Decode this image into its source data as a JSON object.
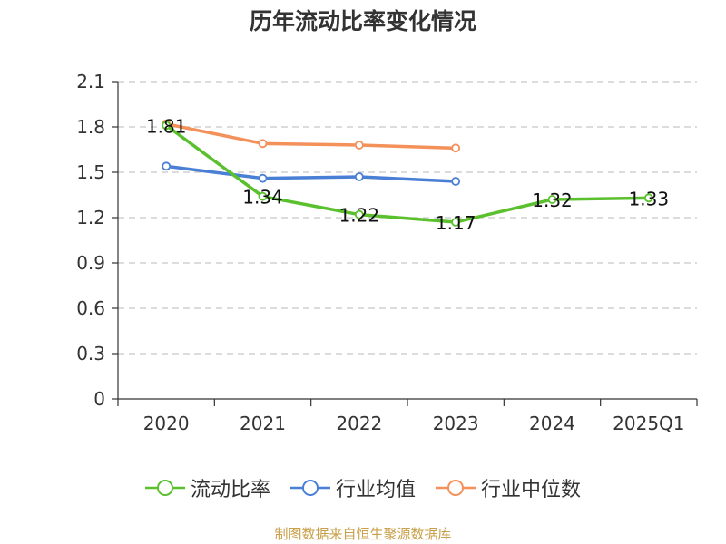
{
  "title": "历年流动比率变化情况",
  "source": "制图数据来自恒生聚源数据库",
  "chart_data": {
    "type": "line",
    "title": "历年流动比率变化情况",
    "categories": [
      "2020",
      "2021",
      "2022",
      "2023",
      "2024",
      "2025Q1"
    ],
    "ylim": [
      0,
      2.1
    ],
    "yticks": [
      "0",
      "0.3",
      "0.6",
      "0.9",
      "1.2",
      "1.5",
      "1.8",
      "2.1"
    ],
    "grid": true,
    "legend_position": "bottom",
    "series": [
      {
        "name": "流动比率",
        "color": "#5ac02e",
        "values": [
          1.81,
          1.34,
          1.22,
          1.17,
          1.32,
          1.33
        ],
        "labels": [
          "1.81",
          "1.34",
          "1.22",
          "1.17",
          "1.32",
          "1.33"
        ]
      },
      {
        "name": "行业均值",
        "color": "#4a7fd6",
        "values": [
          1.54,
          1.46,
          1.47,
          1.44,
          null,
          null
        ]
      },
      {
        "name": "行业中位数",
        "color": "#f4905a",
        "values": [
          1.82,
          1.69,
          1.68,
          1.66,
          null,
          null
        ]
      }
    ]
  }
}
